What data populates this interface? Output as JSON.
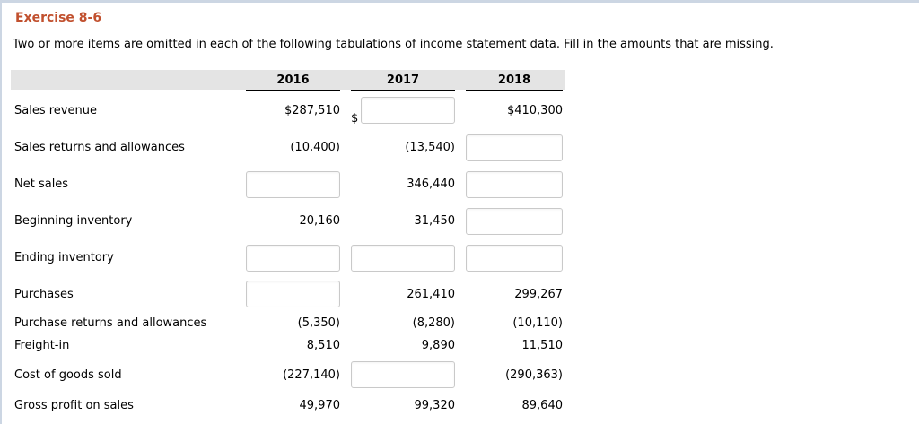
{
  "page": {
    "title": "Exercise 8-6",
    "instructions": "Two or more items are omitted in each of the following tabulations of income statement data. Fill in the amounts that are missing."
  },
  "colors": {
    "accent": "#c1502e",
    "header_bg": "#e4e4e4",
    "page_border": "#ccd6e3",
    "input_border": "#c9c9c9",
    "underline": "#000000",
    "text": "#1a1a1a"
  },
  "table": {
    "year_headers": [
      "2016",
      "2017",
      "2018"
    ],
    "rows": [
      {
        "label": "Sales revenue",
        "cells": [
          {
            "type": "text",
            "value": "$287,510"
          },
          {
            "type": "input",
            "value": "",
            "prefix": "$"
          },
          {
            "type": "text",
            "value": "$410,300"
          }
        ]
      },
      {
        "label": "Sales returns and allowances",
        "cells": [
          {
            "type": "text",
            "value": "(10,400)"
          },
          {
            "type": "text",
            "value": "(13,540)"
          },
          {
            "type": "input",
            "value": ""
          }
        ]
      },
      {
        "label": "Net sales",
        "cells": [
          {
            "type": "input",
            "value": ""
          },
          {
            "type": "text",
            "value": "346,440"
          },
          {
            "type": "input",
            "value": ""
          }
        ]
      },
      {
        "label": "Beginning inventory",
        "cells": [
          {
            "type": "text",
            "value": "20,160"
          },
          {
            "type": "text",
            "value": "31,450"
          },
          {
            "type": "input",
            "value": ""
          }
        ]
      },
      {
        "label": "Ending inventory",
        "cells": [
          {
            "type": "input",
            "value": ""
          },
          {
            "type": "input",
            "value": ""
          },
          {
            "type": "input",
            "value": ""
          }
        ]
      },
      {
        "label": "Purchases",
        "cells": [
          {
            "type": "input",
            "value": ""
          },
          {
            "type": "text",
            "value": "261,410"
          },
          {
            "type": "text",
            "value": "299,267"
          }
        ]
      },
      {
        "label": "Purchase returns and allowances",
        "cells": [
          {
            "type": "text",
            "value": "(5,350)"
          },
          {
            "type": "text",
            "value": "(8,280)"
          },
          {
            "type": "text",
            "value": "(10,110)"
          }
        ]
      },
      {
        "label": "Freight-in",
        "cells": [
          {
            "type": "text",
            "value": "8,510"
          },
          {
            "type": "text",
            "value": "9,890"
          },
          {
            "type": "text",
            "value": "11,510"
          }
        ]
      },
      {
        "label": "Cost of goods sold",
        "cells": [
          {
            "type": "text",
            "value": "(227,140)"
          },
          {
            "type": "input",
            "value": ""
          },
          {
            "type": "text",
            "value": "(290,363)"
          }
        ]
      },
      {
        "label": "Gross profit on sales",
        "cells": [
          {
            "type": "text",
            "value": "49,970"
          },
          {
            "type": "text",
            "value": "99,320"
          },
          {
            "type": "text",
            "value": "89,640"
          }
        ]
      }
    ]
  }
}
